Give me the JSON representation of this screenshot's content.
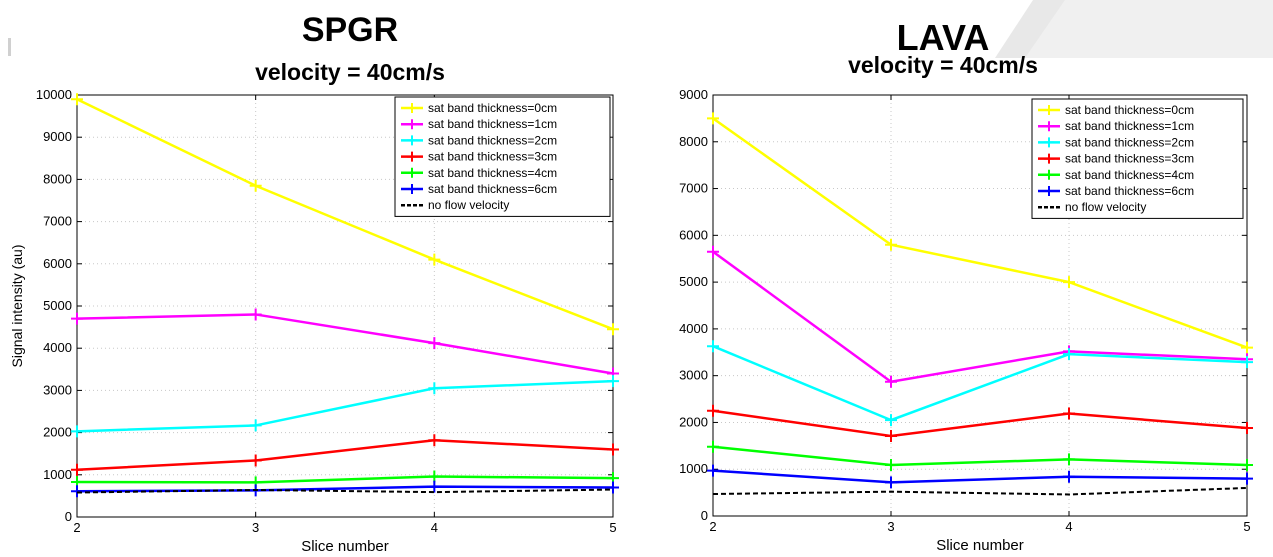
{
  "chart_data": [
    {
      "type": "line",
      "title": "SPGR",
      "subtitle": "velocity = 40cm/s",
      "xlabel": "Slice number",
      "ylabel": "Signal intensity (au)",
      "x": [
        2,
        3,
        4,
        5
      ],
      "xlim": [
        2,
        5
      ],
      "ylim": [
        0,
        10000
      ],
      "yticks": [
        0,
        1000,
        2000,
        3000,
        4000,
        5000,
        6000,
        7000,
        8000,
        9000,
        10000
      ],
      "grid": true,
      "legend_position": "top-right",
      "series": [
        {
          "name": "sat band thickness=0cm",
          "color": "#ffff00",
          "values": [
            9900,
            7850,
            6100,
            4450
          ]
        },
        {
          "name": "sat band thickness=1cm",
          "color": "#ff00ff",
          "values": [
            4700,
            4800,
            4120,
            3400
          ]
        },
        {
          "name": "sat band thickness=2cm",
          "color": "#00ffff",
          "values": [
            2030,
            2170,
            3050,
            3220
          ]
        },
        {
          "name": "sat band thickness=3cm",
          "color": "#ff0000",
          "values": [
            1120,
            1340,
            1820,
            1600
          ]
        },
        {
          "name": "sat band thickness=4cm",
          "color": "#00ff00",
          "values": [
            830,
            820,
            960,
            920
          ]
        },
        {
          "name": "sat band thickness=6cm",
          "color": "#0000ff",
          "values": [
            610,
            630,
            720,
            700
          ]
        },
        {
          "name": "no flow velocity",
          "color": "#000000",
          "dashed": true,
          "values": [
            580,
            640,
            590,
            650
          ]
        }
      ]
    },
    {
      "type": "line",
      "title": "LAVA",
      "subtitle": "velocity = 40cm/s",
      "xlabel": "Slice number",
      "ylabel": "",
      "x": [
        2,
        3,
        4,
        5
      ],
      "xlim": [
        2,
        5
      ],
      "ylim": [
        0,
        9000
      ],
      "yticks": [
        0,
        1000,
        2000,
        3000,
        4000,
        5000,
        6000,
        7000,
        8000,
        9000
      ],
      "grid": true,
      "legend_position": "top-right",
      "series": [
        {
          "name": "sat band thickness=0cm",
          "color": "#ffff00",
          "values": [
            8500,
            5800,
            5000,
            3600
          ]
        },
        {
          "name": "sat band thickness=1cm",
          "color": "#ff00ff",
          "values": [
            5650,
            2870,
            3520,
            3350
          ]
        },
        {
          "name": "sat band thickness=2cm",
          "color": "#00ffff",
          "values": [
            3630,
            2050,
            3460,
            3290
          ]
        },
        {
          "name": "sat band thickness=3cm",
          "color": "#ff0000",
          "values": [
            2250,
            1710,
            2190,
            1880
          ]
        },
        {
          "name": "sat band thickness=4cm",
          "color": "#00ff00",
          "values": [
            1480,
            1090,
            1210,
            1090
          ]
        },
        {
          "name": "sat band thickness=6cm",
          "color": "#0000ff",
          "values": [
            970,
            720,
            840,
            800
          ]
        },
        {
          "name": "no flow velocity",
          "color": "#000000",
          "dashed": true,
          "values": [
            470,
            520,
            460,
            600
          ]
        }
      ]
    }
  ]
}
